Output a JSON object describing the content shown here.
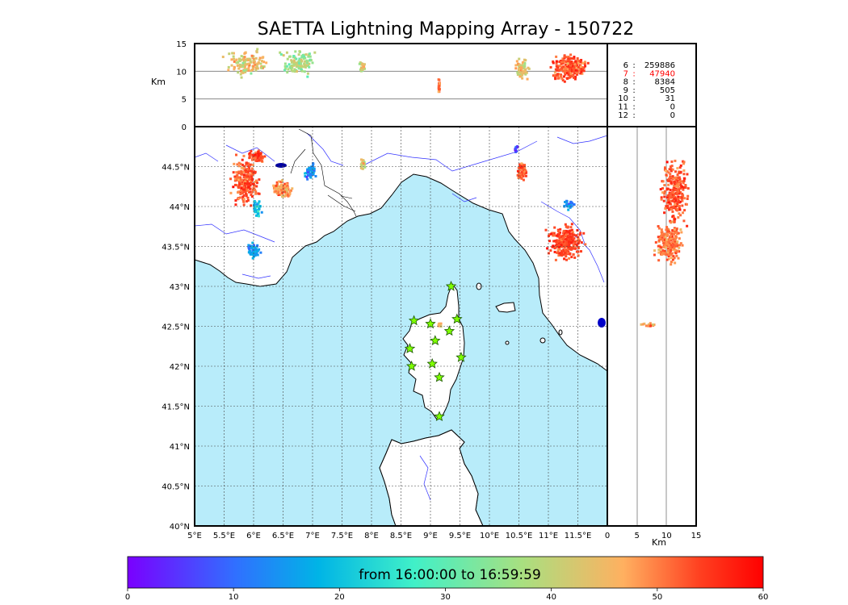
{
  "title": "SAETTA Lightning Mapping Array - 150722",
  "altitude_unit": "Km",
  "colorbar": {
    "label": "from 16:00:00 to 16:59:59",
    "ticks": [
      0,
      10,
      20,
      30,
      40,
      50,
      60
    ],
    "colors": [
      "#7a00ff",
      "#3070ff",
      "#00b4e6",
      "#40f0c8",
      "#a8e080",
      "#ffb060",
      "#ff4020",
      "#ff0000"
    ]
  },
  "station_counts": [
    {
      "stations": "6",
      "count": "259886",
      "color": "#000000"
    },
    {
      "stations": "7",
      "count": "47940",
      "color": "#ff0000"
    },
    {
      "stations": "8",
      "count": "8384",
      "color": "#000000"
    },
    {
      "stations": "9",
      "count": "505",
      "color": "#000000"
    },
    {
      "stations": "10",
      "count": "31",
      "color": "#000000"
    },
    {
      "stations": "11",
      "count": "0",
      "color": "#000000"
    },
    {
      "stations": "12",
      "count": "0",
      "color": "#000000"
    }
  ],
  "chart_data": {
    "type": "scatter",
    "title": "SAETTA Lightning Mapping Array - 150722",
    "map": {
      "xlim": [
        5,
        12
      ],
      "ylim": [
        40,
        45
      ],
      "x_ticks": [
        "5°E",
        "5.5°E",
        "6°E",
        "6.5°E",
        "7°E",
        "7.5°E",
        "8°E",
        "8.5°E",
        "9°E",
        "9.5°E",
        "10°E",
        "10.5°E",
        "11°E",
        "11.5°E"
      ],
      "y_ticks": [
        "40°N",
        "40.5°N",
        "41°N",
        "41.5°N",
        "42°N",
        "42.5°N",
        "43°N",
        "43.5°N",
        "44°N",
        "44.5°N"
      ],
      "grid": true
    },
    "altitude_panels": {
      "ylim": [
        0,
        15
      ],
      "ticks": [
        0,
        5,
        10,
        15
      ],
      "label": "Km"
    },
    "time_colorscale": {
      "min": 0,
      "max": 60,
      "label": "from 16:00:00 to 16:59:59"
    },
    "stations": [
      {
        "lon": 9.35,
        "lat": 43.0
      },
      {
        "lon": 8.72,
        "lat": 42.57
      },
      {
        "lon": 9.0,
        "lat": 42.53
      },
      {
        "lon": 9.45,
        "lat": 42.59
      },
      {
        "lon": 9.32,
        "lat": 42.44
      },
      {
        "lon": 9.08,
        "lat": 42.32
      },
      {
        "lon": 8.65,
        "lat": 42.22
      },
      {
        "lon": 8.68,
        "lat": 42.0
      },
      {
        "lon": 9.03,
        "lat": 42.03
      },
      {
        "lon": 9.52,
        "lat": 42.11
      },
      {
        "lon": 9.15,
        "lat": 41.86
      },
      {
        "lon": 9.15,
        "lat": 41.37
      }
    ],
    "clusters": [
      {
        "lon": 5.85,
        "lat": 44.32,
        "rx": 0.3,
        "ry": 0.38,
        "t": 50,
        "n": 220
      },
      {
        "lon": 6.5,
        "lat": 44.22,
        "rx": 0.22,
        "ry": 0.14,
        "t": 45,
        "n": 110
      },
      {
        "lon": 6.05,
        "lat": 44.62,
        "rx": 0.18,
        "ry": 0.1,
        "t": 52,
        "n": 70
      },
      {
        "lon": 6.0,
        "lat": 43.45,
        "rx": 0.14,
        "ry": 0.14,
        "t": 14,
        "n": 70
      },
      {
        "lon": 6.05,
        "lat": 43.98,
        "rx": 0.1,
        "ry": 0.16,
        "t": 18,
        "n": 40
      },
      {
        "lon": 6.97,
        "lat": 44.43,
        "rx": 0.14,
        "ry": 0.12,
        "t": 12,
        "n": 60
      },
      {
        "lon": 7.85,
        "lat": 44.55,
        "rx": 0.05,
        "ry": 0.1,
        "t": 38,
        "n": 25
      },
      {
        "lon": 10.55,
        "lat": 44.43,
        "rx": 0.12,
        "ry": 0.15,
        "t": 50,
        "n": 60
      },
      {
        "lon": 10.45,
        "lat": 44.72,
        "rx": 0.04,
        "ry": 0.05,
        "t": 6,
        "n": 12
      },
      {
        "lon": 11.3,
        "lat": 43.55,
        "rx": 0.38,
        "ry": 0.28,
        "t": 52,
        "n": 260
      },
      {
        "lon": 11.35,
        "lat": 44.02,
        "rx": 0.12,
        "ry": 0.08,
        "t": 12,
        "n": 35
      },
      {
        "lon": 9.15,
        "lat": 42.52,
        "rx": 0.04,
        "ry": 0.03,
        "t": 45,
        "n": 14
      }
    ],
    "alt_clusters": [
      {
        "lon": 5.9,
        "alt": 11.5,
        "rx": 0.45,
        "ry": 3.0,
        "t": 40,
        "n": 130
      },
      {
        "lon": 6.75,
        "alt": 11.5,
        "rx": 0.4,
        "ry": 3.0,
        "t": 35,
        "n": 110
      },
      {
        "lon": 7.85,
        "alt": 10.5,
        "rx": 0.06,
        "ry": 2.0,
        "t": 38,
        "n": 20
      },
      {
        "lon": 9.15,
        "alt": 7.0,
        "rx": 0.02,
        "ry": 2.0,
        "t": 48,
        "n": 16
      },
      {
        "lon": 10.55,
        "alt": 10.5,
        "rx": 0.15,
        "ry": 2.5,
        "t": 40,
        "n": 60
      },
      {
        "lon": 11.35,
        "alt": 10.5,
        "rx": 0.4,
        "ry": 3.0,
        "t": 50,
        "n": 220
      }
    ],
    "lat_alt_clusters": [
      {
        "alt": 11.5,
        "lat": 44.2,
        "rx": 3.0,
        "ry": 0.5,
        "t": 50,
        "n": 240
      },
      {
        "alt": 10.5,
        "lat": 43.55,
        "rx": 3.2,
        "ry": 0.35,
        "t": 48,
        "n": 200
      },
      {
        "alt": 7.0,
        "lat": 42.52,
        "rx": 1.8,
        "ry": 0.03,
        "t": 45,
        "n": 20
      }
    ]
  }
}
